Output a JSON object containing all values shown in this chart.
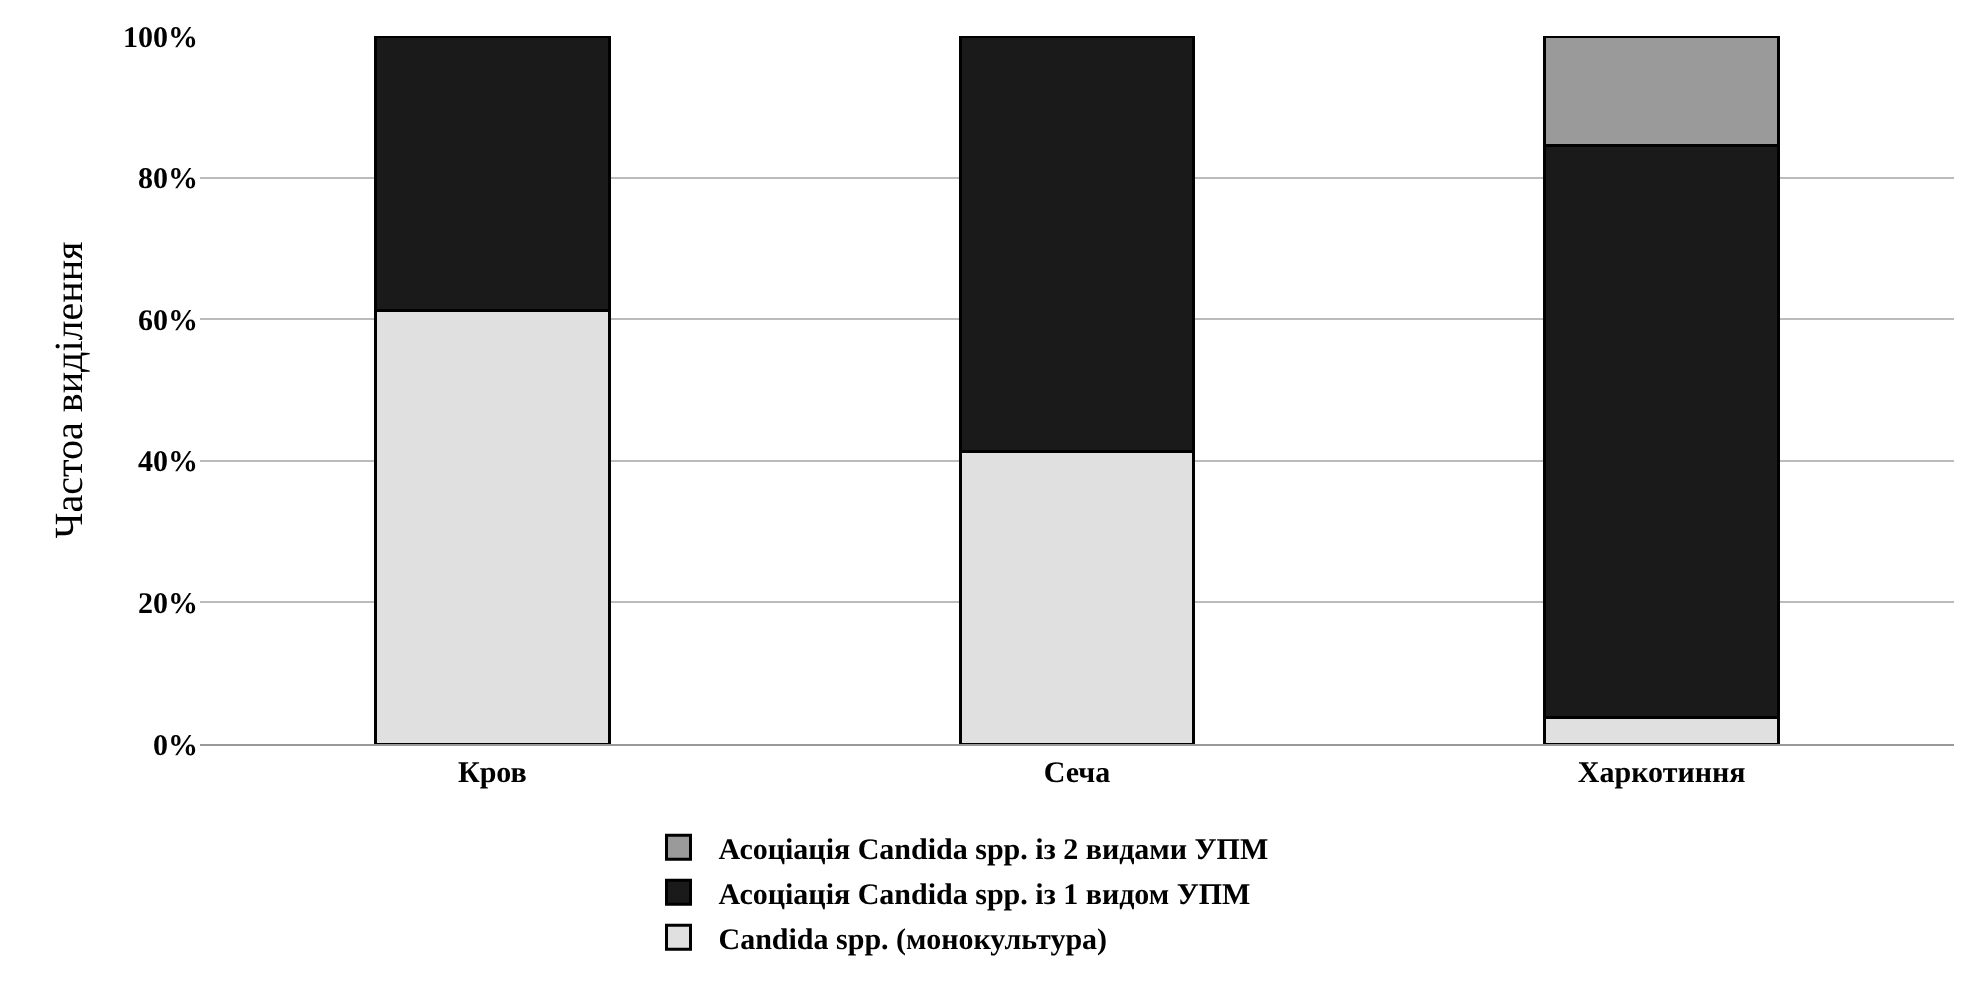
{
  "chart_data": {
    "type": "bar",
    "stacked": true,
    "ylabel": "Частоа виділення",
    "categories": [
      "Кров",
      "Сеча",
      "Харкотиння"
    ],
    "series": [
      {
        "name": "Candida spp. (монокультура)",
        "color": "#e0e0e0",
        "values": [
          61.3,
          41.3,
          3.8
        ]
      },
      {
        "name": "Асоціація Candida spp. із 1 видом УПМ",
        "color": "#1a1a1a",
        "values": [
          38.7,
          58.7,
          80.7
        ]
      },
      {
        "name": "Асоціація Candida spp. із 2 видами УПМ",
        "color": "#9a9a9a",
        "values": [
          null,
          null,
          15.5
        ]
      }
    ],
    "ylim": [
      0,
      100
    ],
    "yticks": [
      {
        "value": 0,
        "label": "0%"
      },
      {
        "value": 20,
        "label": "20%"
      },
      {
        "value": 40,
        "label": "40%"
      },
      {
        "value": 60,
        "label": "60%"
      },
      {
        "value": 80,
        "label": "80%"
      },
      {
        "value": 100,
        "label": "100%"
      }
    ],
    "grid": "y",
    "legend": "bottom"
  }
}
